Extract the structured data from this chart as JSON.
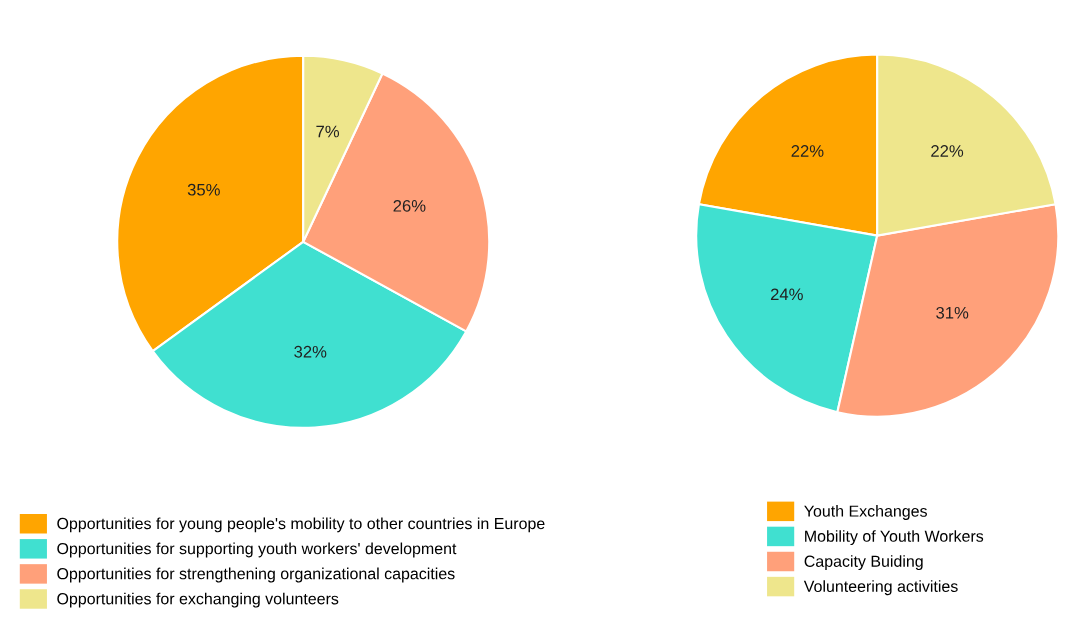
{
  "chart_data": [
    {
      "type": "pie",
      "categories": [
        "Opportunities for young people's mobility to other countries in Europe",
        "Opportunities for supporting youth workers' development",
        "Opportunities for strengthening organizational capacities",
        "Opportunities for exchanging volunteers"
      ],
      "values": [
        35,
        32,
        26,
        7
      ],
      "value_labels": [
        "35%",
        "32%",
        "26%",
        "7%"
      ],
      "colors": [
        "#ffa500",
        "#40e0d0",
        "#ffa07a",
        "#eee68c"
      ],
      "legend": "bottom left"
    },
    {
      "type": "pie",
      "categories": [
        "Youth Exchanges",
        "Mobility of Youth Workers",
        "Capacity Buiding",
        "Volunteering activities"
      ],
      "values": [
        22,
        24,
        31,
        22
      ],
      "value_labels": [
        "22%",
        "24%",
        "31%",
        "22%"
      ],
      "colors": [
        "#ffa500",
        "#40e0d0",
        "#ffa07a",
        "#eee68c"
      ],
      "legend": "bottom left"
    }
  ]
}
